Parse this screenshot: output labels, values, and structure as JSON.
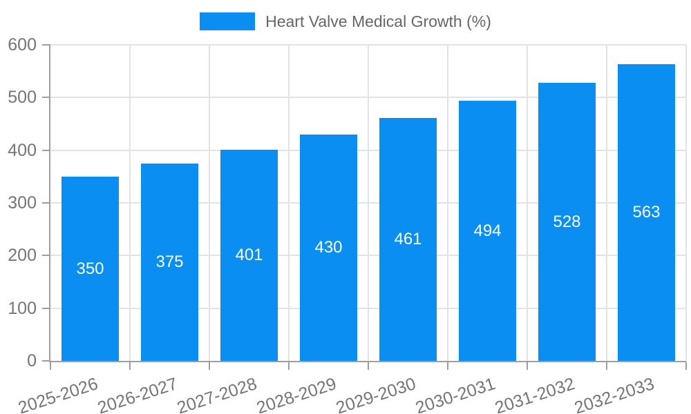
{
  "legend": {
    "label": "Heart Valve Medical Growth (%)"
  },
  "colors": {
    "bar": "#0A8EF2",
    "axis": "#9E9E9E",
    "grid": "#E3E3E3",
    "tick_text": "#757575",
    "legend_text": "#666666",
    "bar_label": "#FFFFFF",
    "background": "#FFFFFF"
  },
  "chart_data": {
    "type": "bar",
    "categories": [
      "2025-2026",
      "2026-2027",
      "2027-2028",
      "2028-2029",
      "2029-2030",
      "2030-2031",
      "2031-2032",
      "2032-2033"
    ],
    "values": [
      350,
      375,
      401,
      430,
      461,
      494,
      528,
      563
    ],
    "title": "",
    "xlabel": "",
    "ylabel": "",
    "legend": "Heart Valve Medical Growth (%)",
    "legend_position": "top",
    "ylim": [
      0,
      600
    ],
    "ytick_step": 100,
    "grid": true,
    "bar_labels_visible": true,
    "bar_label_position": "middle"
  }
}
